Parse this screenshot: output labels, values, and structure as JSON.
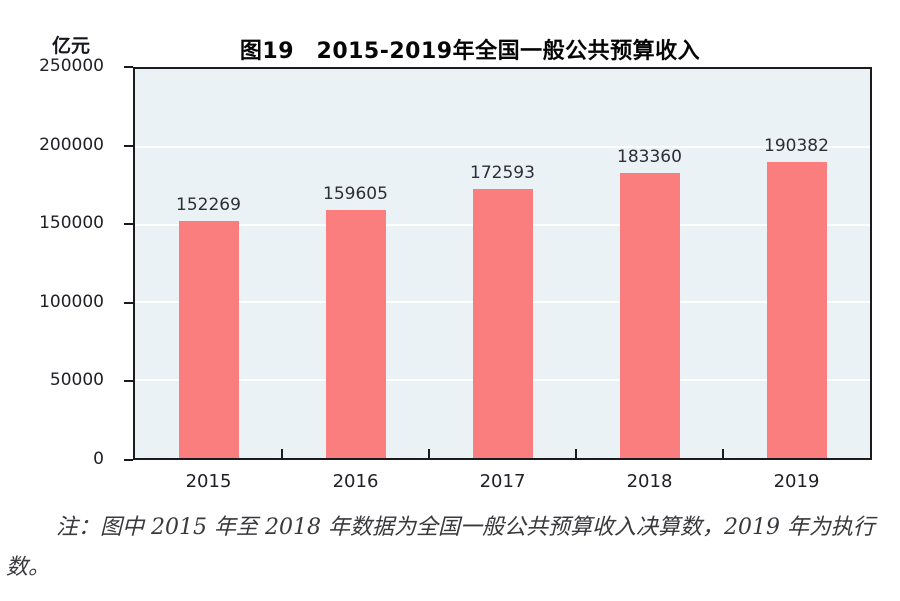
{
  "chart_data": {
    "type": "bar",
    "title": "图19　2015-2019年全国一般公共预算收入",
    "unit_label": "亿元",
    "categories": [
      "2015",
      "2016",
      "2017",
      "2018",
      "2019"
    ],
    "values": [
      152269,
      159605,
      172593,
      183360,
      190382
    ],
    "value_labels": [
      "152269",
      "159605",
      "172593",
      "183360",
      "190382"
    ],
    "ylim": [
      0,
      250000
    ],
    "ytick_interval": 50000,
    "ytick_labels": [
      "250000",
      "200000",
      "150000",
      "100000",
      "50000",
      "0"
    ],
    "grid": true,
    "legend": "none",
    "bar_color": "#fa7e7e",
    "plot_background": "#ebf2f6",
    "axis_color": "#1b1b1f"
  },
  "note": "注：图中 2015 年至 2018 年数据为全国一般公共预算收入决算数，2019 年为执行数。"
}
